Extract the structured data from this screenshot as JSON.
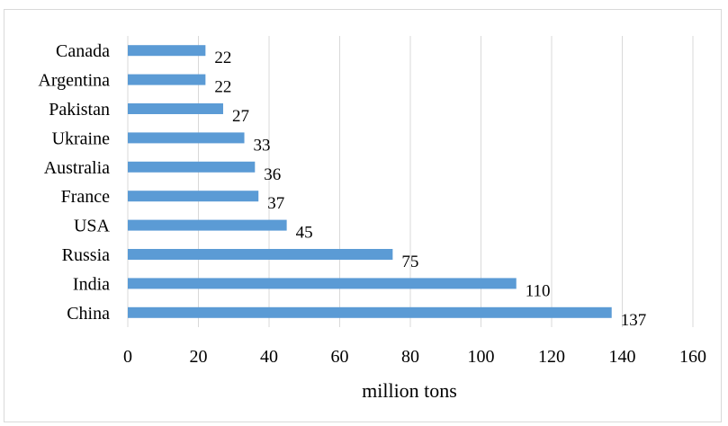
{
  "chart_data": {
    "type": "bar",
    "orientation": "horizontal",
    "categories": [
      "Canada",
      "Argentina",
      "Pakistan",
      "Ukraine",
      "Australia",
      "France",
      "USA",
      "Russia",
      "India",
      "China"
    ],
    "values": [
      22,
      22,
      27,
      33,
      36,
      37,
      45,
      75,
      110,
      137
    ],
    "title": "",
    "xlabel": "million tons",
    "ylabel": "",
    "xlim": [
      0,
      160
    ],
    "xticks": [
      0,
      20,
      40,
      60,
      80,
      100,
      120,
      140,
      160
    ],
    "grid": "vertical",
    "bar_color": "#5b9bd5",
    "data_labels": true,
    "legend": "none"
  }
}
